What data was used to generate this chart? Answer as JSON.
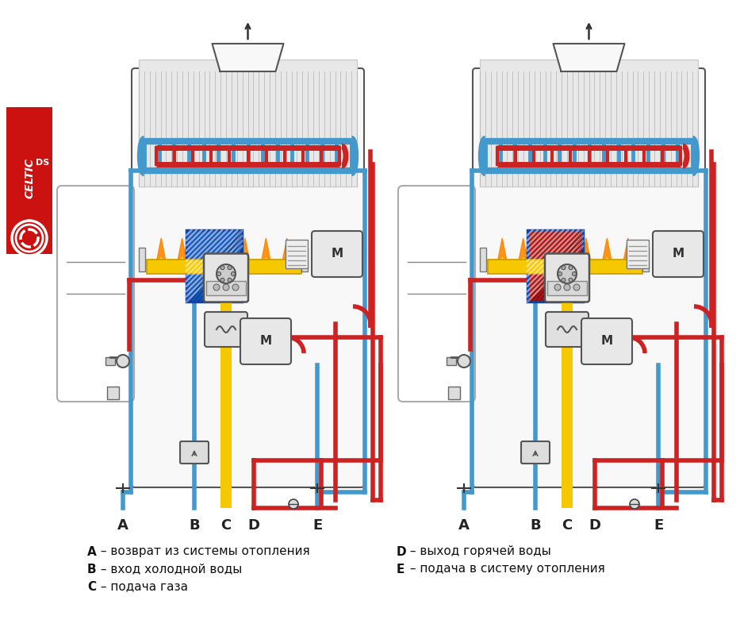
{
  "background_color": "#ffffff",
  "legend_left": [
    "A – возврат из системы отопления",
    "B – вход холодной воды",
    "C – подача газа"
  ],
  "legend_right": [
    "D – выход горячей воды",
    "E – подача в систему отопления"
  ],
  "color_blue": "#4499cc",
  "color_red": "#cc2222",
  "color_dark_red": "#882222",
  "color_yellow": "#f5c800",
  "color_body": "#f0f0f0",
  "color_outline": "#555555",
  "line_lw": 4.0
}
